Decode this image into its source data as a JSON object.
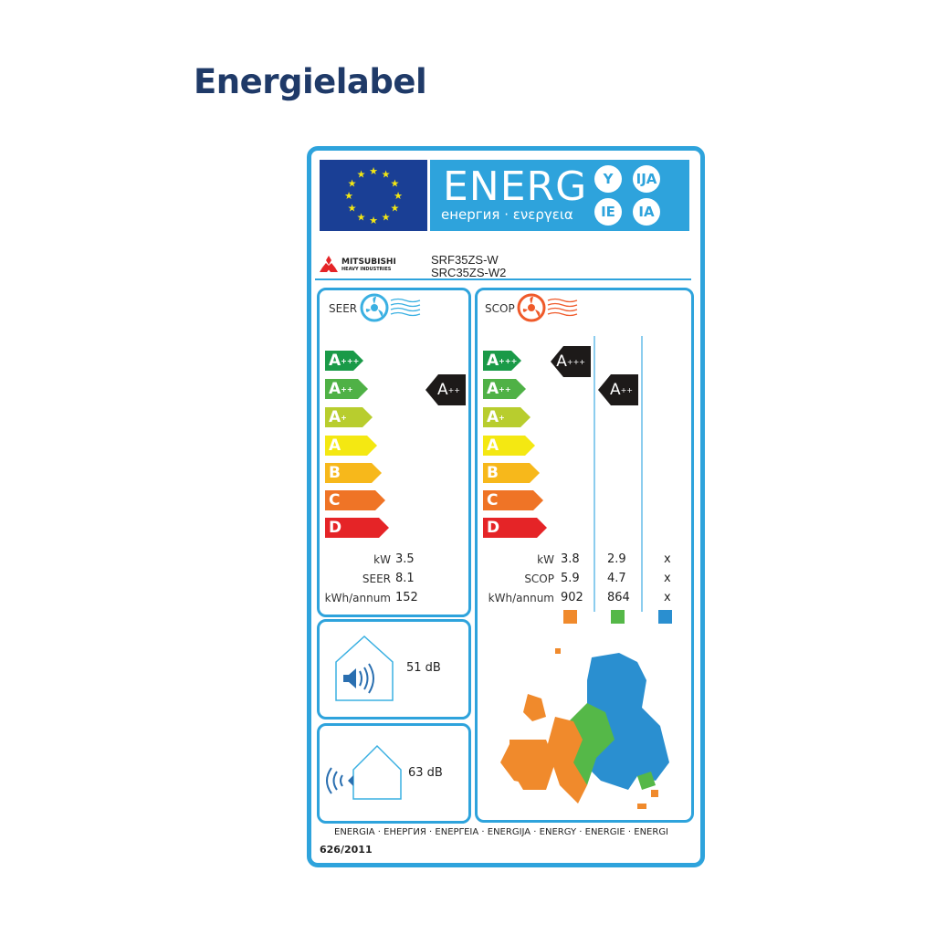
{
  "title": "Energielabel",
  "header": {
    "energ": "ENERG",
    "subtitle": "енергия · ενεργεια",
    "suffixes": [
      "Y",
      "IJA",
      "IE",
      "IA"
    ],
    "brand": "MITSUBISHI",
    "brand_sub": "HEAVY INDUSTRIES",
    "models": [
      "SRF35ZS-W",
      "SRC35ZS-W2"
    ]
  },
  "classes": [
    {
      "l": "A",
      "s": "+++",
      "c": "#1a9a48"
    },
    {
      "l": "A",
      "s": "++",
      "c": "#4fb146"
    },
    {
      "l": "A",
      "s": "+",
      "c": "#b8cd2e"
    },
    {
      "l": "A",
      "s": "",
      "c": "#f4e812"
    },
    {
      "l": "B",
      "s": "",
      "c": "#f7b81b"
    },
    {
      "l": "C",
      "s": "",
      "c": "#ef7426"
    },
    {
      "l": "D",
      "s": "",
      "c": "#e52427"
    }
  ],
  "seer": {
    "label": "SEER",
    "rating": "A",
    "rating_sup": "++",
    "rows": [
      {
        "k": "kW",
        "v": "3.5"
      },
      {
        "k": "SEER",
        "v": "8.1"
      },
      {
        "k": "kWh/annum",
        "v": "152"
      }
    ]
  },
  "scop": {
    "label": "SCOP",
    "ratings": [
      {
        "r": "A",
        "sup": "+++"
      },
      {
        "r": "A",
        "sup": "++"
      }
    ],
    "keys": [
      "kW",
      "SCOP",
      "kWh/annum"
    ],
    "columns": [
      {
        "vals": [
          "3.8",
          "5.9",
          "902"
        ],
        "color": "#f08a2c"
      },
      {
        "vals": [
          "2.9",
          "4.7",
          "864"
        ],
        "color": "#55b848"
      },
      {
        "vals": [
          "x",
          "x",
          "x"
        ],
        "color": "#2a8fd0"
      }
    ]
  },
  "noise": {
    "indoor": "51 dB",
    "outdoor": "63 dB"
  },
  "footer": {
    "languages": "ENERGIA · ЕНЕРГИЯ · ΕΝΕΡΓΕΙΑ · ENERGIJA · ENERGY · ENERGIE · ENERGI",
    "regulation": "626/2011"
  },
  "colors": {
    "frame": "#2ea3dc",
    "eu_blue": "#1a3f95",
    "title": "#1f3a68"
  }
}
